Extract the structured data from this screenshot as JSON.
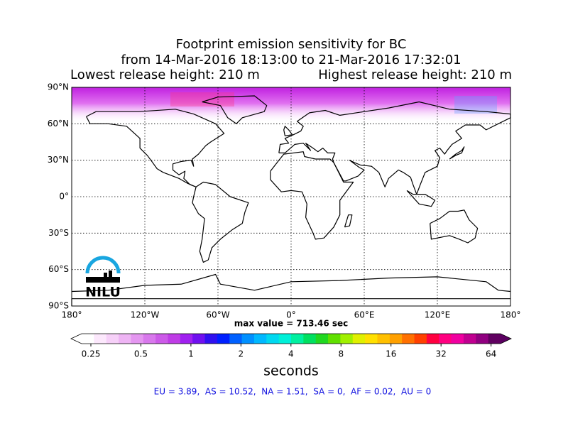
{
  "title": [
    "Footprint emission sensitivity for BC",
    "from 14-Mar-2016 18:13:00 to 21-Mar-2016 17:32:01"
  ],
  "release_heights": [
    "Lowest release height: 210 m",
    "Highest release height: 210 m"
  ],
  "map": {
    "xlim": [
      -180,
      180
    ],
    "ylim": [
      -90,
      90
    ],
    "grid": true,
    "logo": "NILU",
    "lat_ticks": [
      {
        "value": 90,
        "label": "90°N"
      },
      {
        "value": 60,
        "label": "60°N"
      },
      {
        "value": 30,
        "label": "30°N"
      },
      {
        "value": 0,
        "label": "0°"
      },
      {
        "value": -30,
        "label": "30°S"
      },
      {
        "value": -60,
        "label": "60°S"
      },
      {
        "value": -90,
        "label": "90°S"
      }
    ],
    "lon_ticks": [
      {
        "value": -180,
        "label": "180°"
      },
      {
        "value": -120,
        "label": "120°W"
      },
      {
        "value": -60,
        "label": "60°W"
      },
      {
        "value": 0,
        "label": "0°"
      },
      {
        "value": 60,
        "label": "60°E"
      },
      {
        "value": 120,
        "label": "120°E"
      },
      {
        "value": 180,
        "label": "180°"
      }
    ]
  },
  "max_value": "max value = 713.46 sec",
  "colorbar": {
    "ticks": [
      0.25,
      0.5,
      1,
      2,
      4,
      8,
      16,
      32,
      64
    ],
    "clim": [
      0.22,
      73
    ],
    "log": true,
    "label": "seconds",
    "under_color": "#ffffff",
    "over_color": "#5a0060",
    "colors": [
      "#ffffff",
      "#fce8fc",
      "#f6d0f8",
      "#eeb4f4",
      "#e496f0",
      "#d878ec",
      "#cc5ae8",
      "#bf3ce6",
      "#a020f0",
      "#7010f0",
      "#3010f0",
      "#0020ff",
      "#0060ff",
      "#0090ff",
      "#00b8ff",
      "#00d8f0",
      "#00f0d8",
      "#00f0a0",
      "#00e060",
      "#20d820",
      "#60e000",
      "#a0f000",
      "#e0f000",
      "#ffe000",
      "#ffc000",
      "#ffa000",
      "#ff7000",
      "#ff4000",
      "#ff0040",
      "#ff0080",
      "#f000a0",
      "#c00090",
      "#900080",
      "#600060"
    ]
  },
  "region_totals": "EU = 3.89,  AS = 10.52,  NA = 1.51,  SA = 0,  AF = 0.02,  AU = 0"
}
